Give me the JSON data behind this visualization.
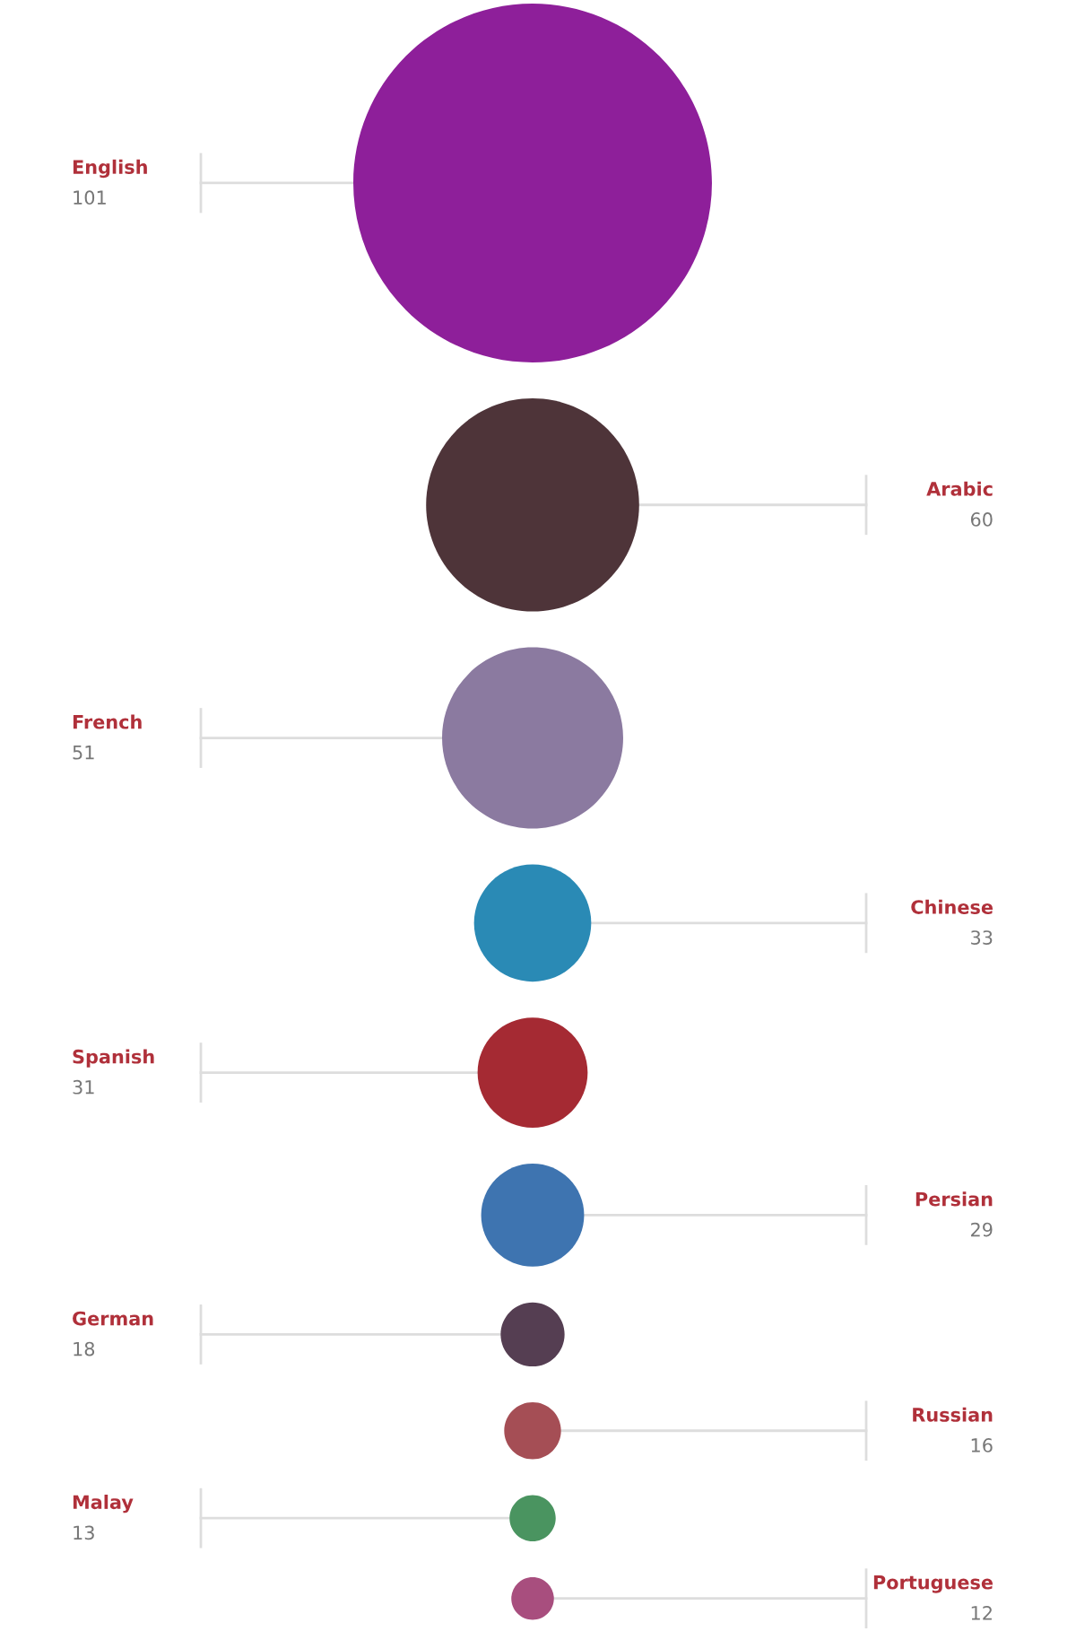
{
  "chart_data": {
    "type": "other",
    "categories": [
      "English",
      "Arabic",
      "French",
      "Chinese",
      "Spanish",
      "Persian",
      "German",
      "Russian",
      "Malay",
      "Portuguese"
    ],
    "values": [
      101,
      60,
      51,
      33,
      31,
      29,
      18,
      16,
      13,
      12
    ],
    "colors": [
      "#8e1f9a",
      "#4e3439",
      "#8b7aa0",
      "#2a8ab5",
      "#a52a33",
      "#3e74b0",
      "#553e52",
      "#a54e55",
      "#4a9460",
      "#a84e7e"
    ],
    "data_labels": true
  }
}
